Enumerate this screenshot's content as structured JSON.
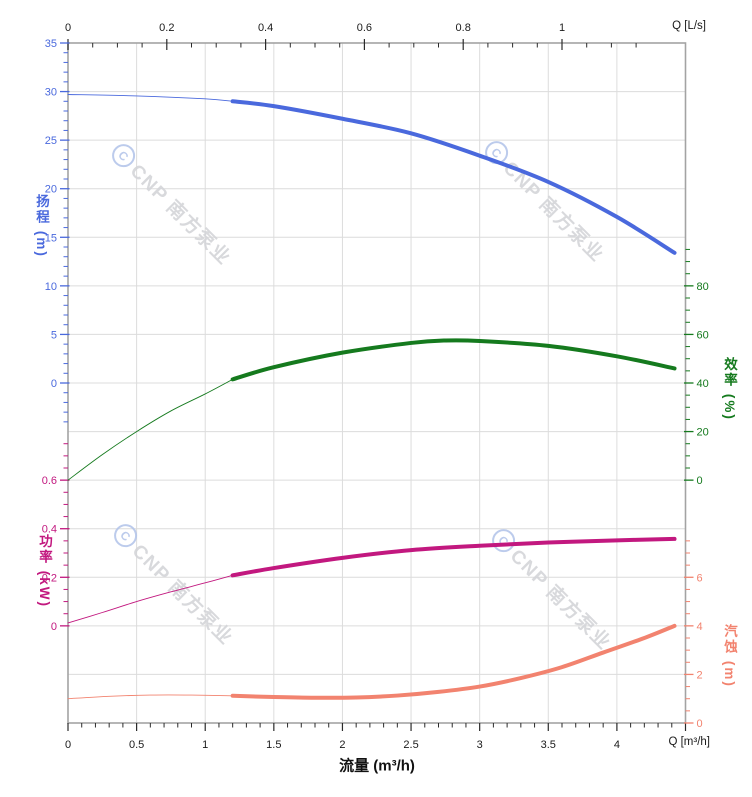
{
  "watermark": {
    "icon_letter": "C",
    "text": "CNP 南方泵业",
    "icon_color": "#b5c6ea",
    "text_color": "#d4d5d9"
  },
  "chart_data": {
    "type": "line",
    "description": "Pump performance curves: head, efficiency, power, NPSH vs flow",
    "grid": true,
    "x_axis_bottom": {
      "title": "流量 (m³/h)",
      "corner_label": "Q [m³/h]",
      "unit": "m³/h",
      "range": [
        0,
        4.5
      ],
      "tick_values": [
        0,
        0.5,
        1,
        1.5,
        2,
        2.5,
        3,
        3.5,
        4
      ],
      "tick_labels": [
        "0",
        "0.5",
        "1",
        "1.5",
        "2",
        "2.5",
        "3",
        "3.5",
        "4"
      ],
      "minor_step": 0.1,
      "label_color": "#1a1a1a"
    },
    "x_axis_top": {
      "corner_label": "Q [L/s]",
      "unit": "L/s",
      "range": [
        0,
        1.25
      ],
      "tick_values": [
        0,
        0.2,
        0.4,
        0.6,
        0.8,
        1
      ],
      "tick_labels": [
        "0",
        "0.2",
        "0.4",
        "0.6",
        "0.8",
        "1"
      ],
      "minor_step": 0.05,
      "label_color": "#1a1a1a"
    },
    "y_axes": {
      "head": {
        "title": "扬程 (m)",
        "side": "left",
        "color": "#4a69dd",
        "tick_values": [
          35,
          30,
          25,
          20,
          15,
          10,
          5,
          0
        ],
        "tick_labels": [
          "35",
          "30",
          "25",
          "20",
          "15",
          "10",
          "5",
          "0"
        ],
        "minor_step": 1
      },
      "power": {
        "title": "功率 (kW)",
        "side": "left",
        "color": "#c2187f",
        "tick_values": [
          0.6,
          0.4,
          0.2,
          0
        ],
        "tick_labels": [
          "0.6",
          "0.4",
          "0.2",
          "0"
        ],
        "minor_step": 0.05
      },
      "eff": {
        "title": "效率 (%)",
        "side": "right",
        "color": "#157a1e",
        "tick_values": [
          80,
          60,
          40,
          20,
          0
        ],
        "tick_labels": [
          "80",
          "60",
          "40",
          "20",
          "0"
        ],
        "minor_step": 5
      },
      "npsh": {
        "title": "汽蚀 (m)",
        "side": "right",
        "color": "#f2836f",
        "tick_values": [
          6,
          4,
          2,
          0
        ],
        "tick_labels": [
          "6",
          "4",
          "2",
          "0"
        ],
        "minor_step": 0.5
      }
    },
    "series": [
      {
        "name": "head",
        "label": "扬程",
        "axis": "head",
        "color": "#4a69dd",
        "split_q": 1.2,
        "points": [
          [
            0,
            29.7
          ],
          [
            0.5,
            29.55
          ],
          [
            1.0,
            29.25
          ],
          [
            1.2,
            29.0
          ],
          [
            1.5,
            28.5
          ],
          [
            2.0,
            27.2
          ],
          [
            2.5,
            25.7
          ],
          [
            3.0,
            23.4
          ],
          [
            3.5,
            20.7
          ],
          [
            4.0,
            17.1
          ],
          [
            4.42,
            13.4
          ]
        ]
      },
      {
        "name": "efficiency",
        "label": "效率",
        "axis": "eff",
        "color": "#157a1e",
        "split_q": 1.2,
        "points": [
          [
            0,
            0
          ],
          [
            0.25,
            10.5
          ],
          [
            0.5,
            20
          ],
          [
            0.75,
            28.5
          ],
          [
            1.0,
            35.5
          ],
          [
            1.2,
            41.5
          ],
          [
            1.5,
            46.5
          ],
          [
            2.0,
            52.5
          ],
          [
            2.5,
            56.5
          ],
          [
            2.75,
            57.5
          ],
          [
            3.0,
            57.3
          ],
          [
            3.5,
            55.3
          ],
          [
            4.0,
            51
          ],
          [
            4.42,
            46
          ]
        ]
      },
      {
        "name": "power",
        "label": "功率",
        "axis": "power",
        "color": "#c2187f",
        "split_q": 1.2,
        "points": [
          [
            0,
            0.012
          ],
          [
            0.25,
            0.055
          ],
          [
            0.5,
            0.1
          ],
          [
            0.75,
            0.14
          ],
          [
            1.0,
            0.177
          ],
          [
            1.2,
            0.208
          ],
          [
            1.5,
            0.238
          ],
          [
            2.0,
            0.28
          ],
          [
            2.5,
            0.312
          ],
          [
            3.0,
            0.33
          ],
          [
            3.5,
            0.343
          ],
          [
            4.0,
            0.352
          ],
          [
            4.42,
            0.358
          ]
        ]
      },
      {
        "name": "npsh",
        "label": "汽蚀",
        "axis": "npsh",
        "color": "#f2836f",
        "split_q": 1.2,
        "points": [
          [
            0,
            1.0
          ],
          [
            0.3,
            1.1
          ],
          [
            0.6,
            1.15
          ],
          [
            0.9,
            1.15
          ],
          [
            1.2,
            1.12
          ],
          [
            1.5,
            1.07
          ],
          [
            1.8,
            1.04
          ],
          [
            2.1,
            1.05
          ],
          [
            2.4,
            1.13
          ],
          [
            2.7,
            1.28
          ],
          [
            3.0,
            1.5
          ],
          [
            3.3,
            1.85
          ],
          [
            3.6,
            2.3
          ],
          [
            3.9,
            2.9
          ],
          [
            4.2,
            3.5
          ],
          [
            4.42,
            4.0
          ]
        ]
      }
    ]
  }
}
